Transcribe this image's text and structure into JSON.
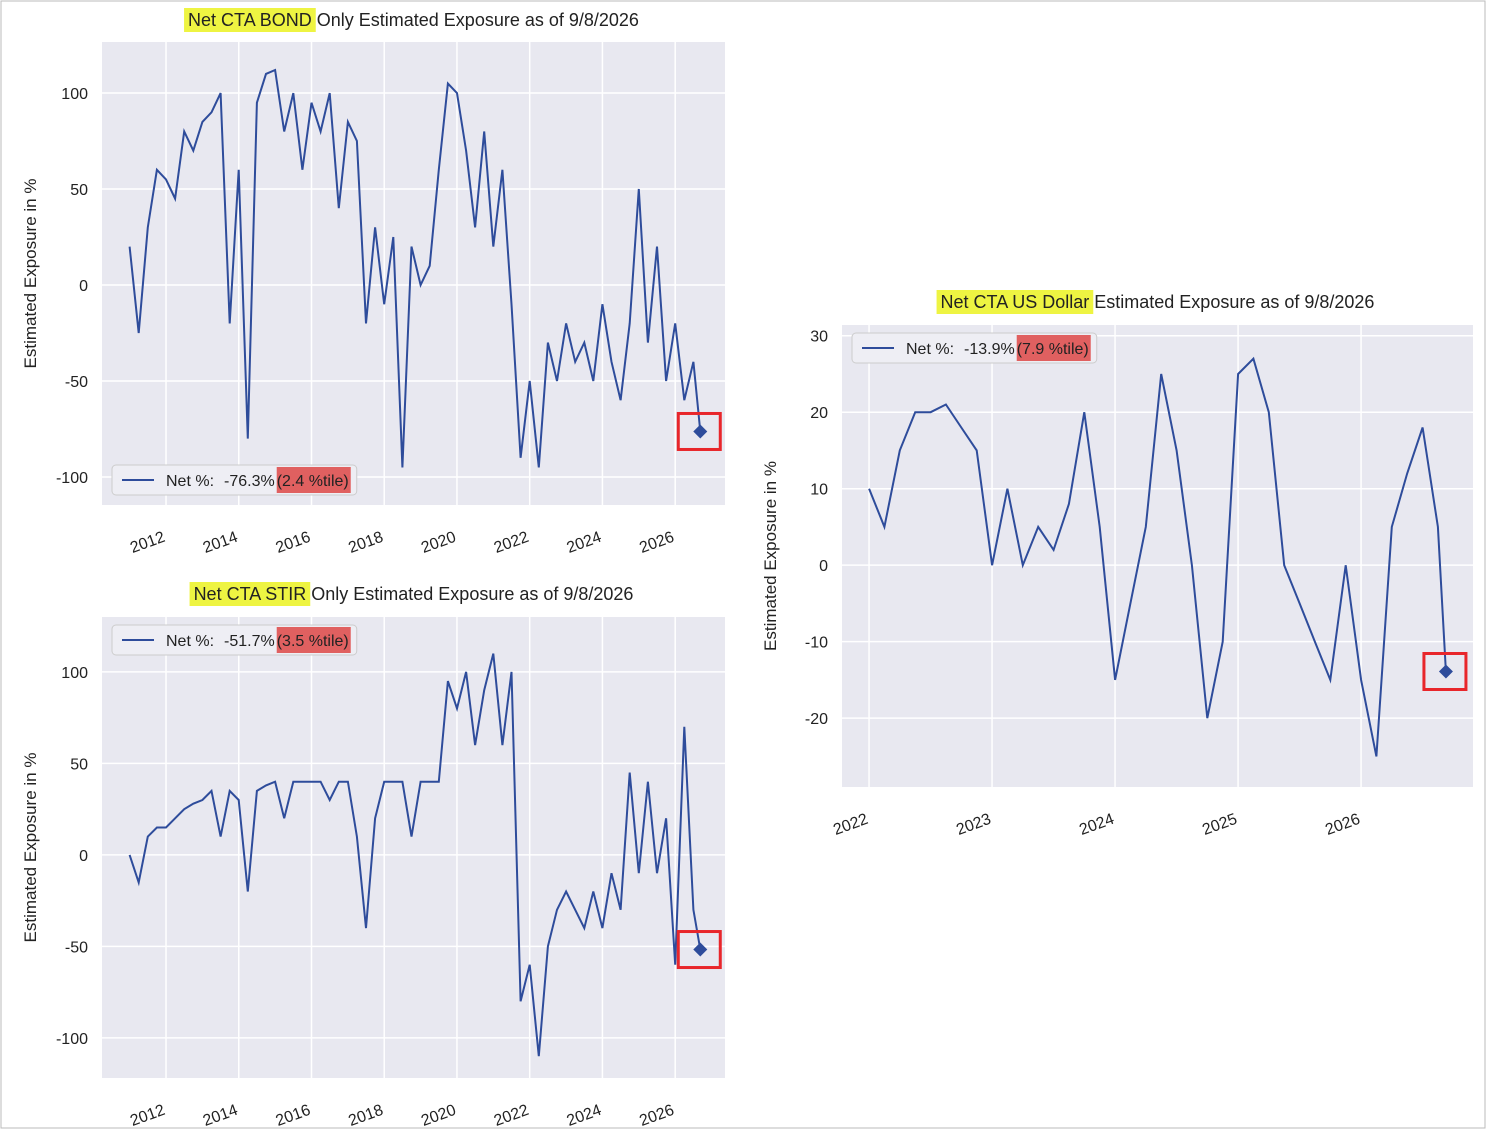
{
  "chart_data": [
    {
      "type": "line",
      "title_highlight": "Net CTA BOND",
      "title": "Only Estimated Exposure as of 9/8/2026",
      "y_label": "Estimated Exposure in %",
      "x": [
        2011.0,
        2011.25,
        2011.5,
        2011.75,
        2012.0,
        2012.25,
        2012.5,
        2012.75,
        2013.0,
        2013.25,
        2013.5,
        2013.75,
        2014.0,
        2014.25,
        2014.5,
        2014.75,
        2015.0,
        2015.25,
        2015.5,
        2015.75,
        2016.0,
        2016.25,
        2016.5,
        2016.75,
        2017.0,
        2017.25,
        2017.5,
        2017.75,
        2018.0,
        2018.25,
        2018.5,
        2018.75,
        2019.0,
        2019.25,
        2019.5,
        2019.75,
        2020.0,
        2020.25,
        2020.5,
        2020.75,
        2021.0,
        2021.25,
        2021.5,
        2021.75,
        2022.0,
        2022.25,
        2022.5,
        2022.75,
        2023.0,
        2023.25,
        2023.5,
        2023.75,
        2024.0,
        2024.25,
        2024.5,
        2024.75,
        2025.0,
        2025.25,
        2025.5,
        2025.75,
        2026.0,
        2026.25,
        2026.5,
        2026.69
      ],
      "series": [
        {
          "name": "Net %:",
          "color": "#2e4c9b",
          "values": [
            20,
            -25,
            30,
            60,
            55,
            45,
            80,
            70,
            85,
            90,
            100,
            -20,
            60,
            -80,
            95,
            110,
            112,
            80,
            100,
            60,
            95,
            80,
            100,
            40,
            85,
            75,
            -20,
            30,
            -10,
            25,
            -95,
            20,
            0,
            10,
            60,
            105,
            100,
            70,
            30,
            80,
            20,
            60,
            -10,
            -90,
            -50,
            -95,
            -30,
            -50,
            -20,
            -40,
            -30,
            -50,
            -10,
            -40,
            -60,
            -20,
            50,
            -30,
            20,
            -50,
            -20,
            -60,
            -40,
            -76.3
          ]
        }
      ],
      "legend_value": "-76.3%",
      "legend_percentile": "(2.4 %tile)",
      "legend": "lower left",
      "xlim": [
        2010.24,
        2027.37
      ],
      "xticks": [
        2012,
        2014,
        2016,
        2018,
        2020,
        2022,
        2024,
        2026
      ],
      "ylim": [
        -114.6,
        126.6
      ],
      "yticks": [
        -100,
        -50,
        0,
        50,
        100
      ],
      "grid": true,
      "title_highlight_color": "#eef442",
      "legend_highlight_color": "#e06060"
    },
    {
      "type": "line",
      "title_highlight": "Net CTA STIR",
      "title": "Only Estimated Exposure as of 9/8/2026",
      "y_label": "Estimated Exposure in %",
      "x": [
        2011.0,
        2011.25,
        2011.5,
        2011.75,
        2012.0,
        2012.25,
        2012.5,
        2012.75,
        2013.0,
        2013.25,
        2013.5,
        2013.75,
        2014.0,
        2014.25,
        2014.5,
        2014.75,
        2015.0,
        2015.25,
        2015.5,
        2015.75,
        2016.0,
        2016.25,
        2016.5,
        2016.75,
        2017.0,
        2017.25,
        2017.5,
        2017.75,
        2018.0,
        2018.25,
        2018.5,
        2018.75,
        2019.0,
        2019.25,
        2019.5,
        2019.75,
        2020.0,
        2020.25,
        2020.5,
        2020.75,
        2021.0,
        2021.25,
        2021.5,
        2021.75,
        2022.0,
        2022.25,
        2022.5,
        2022.75,
        2023.0,
        2023.25,
        2023.5,
        2023.75,
        2024.0,
        2024.25,
        2024.5,
        2024.75,
        2025.0,
        2025.25,
        2025.5,
        2025.75,
        2026.0,
        2026.25,
        2026.5,
        2026.69
      ],
      "series": [
        {
          "name": "Net %:",
          "color": "#2e4c9b",
          "values": [
            0,
            -15,
            10,
            15,
            15,
            20,
            25,
            28,
            30,
            35,
            10,
            35,
            30,
            -20,
            35,
            38,
            40,
            20,
            40,
            40,
            40,
            40,
            30,
            40,
            40,
            10,
            -40,
            20,
            40,
            40,
            40,
            10,
            40,
            40,
            40,
            95,
            80,
            100,
            60,
            90,
            110,
            60,
            100,
            -80,
            -60,
            -110,
            -50,
            -30,
            -20,
            -30,
            -40,
            -20,
            -40,
            -10,
            -30,
            45,
            -10,
            40,
            -10,
            20,
            -60,
            70,
            -30,
            -51.7
          ]
        }
      ],
      "legend_value": "-51.7%",
      "legend_percentile": "(3.5 %tile)",
      "legend": "upper left",
      "xlim": [
        2010.24,
        2027.37
      ],
      "xticks": [
        2012,
        2014,
        2016,
        2018,
        2020,
        2022,
        2024,
        2026
      ],
      "ylim": [
        -121.9,
        130
      ],
      "yticks": [
        -100,
        -50,
        0,
        50,
        100
      ],
      "grid": true,
      "title_highlight_color": "#eef442",
      "legend_highlight_color": "#e06060"
    },
    {
      "type": "line",
      "title_highlight": "Net CTA US Dollar",
      "title": "Estimated Exposure as of 9/8/2026",
      "y_label": "Estimated Exposure in %",
      "x": [
        2022.0,
        2022.125,
        2022.25,
        2022.375,
        2022.5,
        2022.625,
        2022.75,
        2022.875,
        2023.0,
        2023.125,
        2023.25,
        2023.375,
        2023.5,
        2023.625,
        2023.75,
        2023.875,
        2024.0,
        2024.125,
        2024.25,
        2024.375,
        2024.5,
        2024.625,
        2024.75,
        2024.875,
        2025.0,
        2025.125,
        2025.25,
        2025.375,
        2025.5,
        2025.625,
        2025.75,
        2025.875,
        2026.0,
        2026.125,
        2026.25,
        2026.375,
        2026.5,
        2026.625,
        2026.69
      ],
      "series": [
        {
          "name": "Net %:",
          "color": "#2e4c9b",
          "values": [
            10,
            5,
            15,
            20,
            20,
            21,
            18,
            15,
            0,
            10,
            0,
            5,
            2,
            8,
            20,
            5,
            -15,
            -5,
            5,
            25,
            15,
            0,
            -20,
            -10,
            25,
            27,
            20,
            0,
            -5,
            -10,
            -15,
            0,
            -15,
            -25,
            5,
            12,
            18,
            5,
            -13.9
          ]
        }
      ],
      "legend_value": "-13.9%",
      "legend_percentile": "(7.9 %tile)",
      "legend": "upper left",
      "xlim": [
        2021.78,
        2026.91
      ],
      "xticks": [
        2022,
        2023,
        2024,
        2025,
        2026
      ],
      "ylim": [
        -29.0,
        31.4
      ],
      "yticks": [
        -20,
        -10,
        0,
        10,
        20,
        30
      ],
      "grid": true,
      "title_highlight_color": "#eef442",
      "legend_highlight_color": "#e06060"
    }
  ]
}
